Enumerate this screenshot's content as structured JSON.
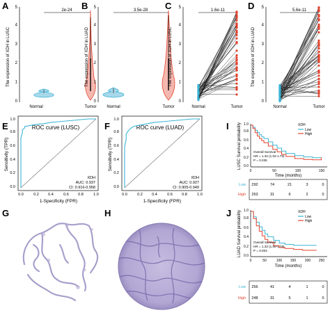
{
  "panels": {
    "A": {
      "letter": "A",
      "pvalue": "2e-24",
      "ylabel": "The expression of XDH in LUSC",
      "yticks": [
        "0",
        "1",
        "2",
        "3",
        "4",
        "5"
      ],
      "groups": [
        "Normal",
        "Tumor"
      ]
    },
    "B": {
      "letter": "B",
      "pvalue": "3.5e-28",
      "ylabel": "The expression of XDH in LUAD",
      "yticks": [
        "0",
        "1",
        "2",
        "3",
        "4",
        "5"
      ],
      "groups": [
        "Normal",
        "Tumor"
      ]
    },
    "C": {
      "letter": "C",
      "pvalue": "1.6e-11",
      "ylabel": "The expression of XDH in LUSC",
      "yticks": [
        "0",
        "1",
        "2",
        "3",
        "4",
        "5"
      ],
      "groups": [
        "Normal",
        "Tumor"
      ]
    },
    "D": {
      "letter": "D",
      "pvalue": "5.6e-11",
      "ylabel": "The expression of XDH in LUAD",
      "yticks": [
        "0",
        "1",
        "2",
        "3",
        "4",
        "5"
      ],
      "groups": [
        "Normal",
        "Tumor"
      ]
    },
    "E": {
      "letter": "E",
      "title": "ROC curve (LUSC)",
      "ylabel": "Sensitivity (TPR)",
      "xlabel": "1-Specificity (FPR)",
      "ticks": [
        "0.0",
        "0.2",
        "0.4",
        "0.6",
        "0.8",
        "1.0"
      ],
      "legend": [
        "XDH",
        "AUC: 0.937",
        "CI: 0.916-0.958"
      ]
    },
    "F": {
      "letter": "F",
      "title": "ROC curve (LUAD)",
      "ylabel": "Sensitivity (TPR)",
      "xlabel": "1-Specificity (FPR)",
      "ticks": [
        "0.0",
        "0.2",
        "0.4",
        "0.6",
        "0.8",
        "1.0"
      ],
      "legend": [
        "XDH",
        "AUC: 0.927",
        "CI: 0.905-0.949"
      ]
    },
    "G": {
      "letter": "G"
    },
    "H": {
      "letter": "H"
    },
    "I": {
      "letter": "I",
      "ylabel": "LUSC Survival probability",
      "xlabel": "Time (months)",
      "legend_title": "XDH",
      "legend": [
        "Low",
        "High"
      ],
      "stats": [
        "Overall Survival",
        "HR = 1.34 (1.02-1.76)",
        "P = 0.035"
      ],
      "yticks": [
        "0.0",
        "0.2",
        "0.4",
        "0.6",
        "0.8",
        "1.0"
      ],
      "xticks": [
        "0",
        "50",
        "100",
        "150"
      ],
      "risk_low": [
        "292",
        "74",
        "21",
        "3",
        "0"
      ],
      "risk_high": [
        "263",
        "31",
        "6",
        "2",
        "0"
      ],
      "risk_labels": [
        "Low",
        "High"
      ]
    },
    "J": {
      "letter": "J",
      "ylabel": "LUAD Survival probability",
      "xlabel": "Time (months)",
      "legend_title": "XDH",
      "legend": [
        "Low",
        "High"
      ],
      "stats": [
        "Overall Survival",
        "HR = 1.33 (1.00-1.78)",
        "P = 0.003"
      ],
      "yticks": [
        "0.0",
        "0.2",
        "0.4",
        "0.6",
        "0.8",
        "1.0"
      ],
      "xticks": [
        "0",
        "50",
        "100",
        "150",
        "200",
        "250"
      ],
      "risk_low": [
        "256",
        "41",
        "4",
        "1",
        "0"
      ],
      "risk_high": [
        "248",
        "31",
        "5",
        "1",
        "0"
      ],
      "risk_labels": [
        "Low",
        "High"
      ]
    }
  },
  "colors": {
    "normal": "#3bb4d6",
    "tumor": "#e3432e",
    "roc": "#3bb4d6",
    "violin_fill": "#f4b8b0",
    "km_low": "#3bb4d6",
    "km_high": "#e3432e",
    "tissue": "#9b8fc2"
  },
  "chart_data": [
    {
      "panel": "A",
      "type": "violin",
      "title": "",
      "ylabel": "The expression of XDH in LUSC",
      "categories": [
        "Normal",
        "Tumor"
      ],
      "ylim": [
        0,
        5
      ],
      "series": [
        {
          "name": "Normal",
          "median": 0.25,
          "range": [
            0.05,
            0.75
          ]
        },
        {
          "name": "Tumor",
          "median": 1.35,
          "q1": 0.6,
          "q3": 2.3,
          "range": [
            0.0,
            5.0
          ]
        }
      ],
      "annotation": "2e-24"
    },
    {
      "panel": "B",
      "type": "violin",
      "title": "",
      "ylabel": "The expression of XDH in LUAD",
      "categories": [
        "Normal",
        "Tumor"
      ],
      "ylim": [
        0,
        5
      ],
      "series": [
        {
          "name": "Normal",
          "median": 0.25,
          "range": [
            0.05,
            0.9
          ]
        },
        {
          "name": "Tumor",
          "median": 1.6,
          "q1": 0.7,
          "q3": 2.3,
          "range": [
            0.0,
            5.0
          ]
        }
      ],
      "annotation": "3.5e-28"
    },
    {
      "panel": "C",
      "type": "scatter",
      "title": "",
      "ylabel": "The expression of XDH in LUSC",
      "categories": [
        "Normal",
        "Tumor"
      ],
      "ylim": [
        0,
        5
      ],
      "paired_n": 49,
      "normal_range": [
        0.1,
        0.9
      ],
      "tumor_range": [
        0.1,
        4.8
      ],
      "annotation": "1.6e-11"
    },
    {
      "panel": "D",
      "type": "scatter",
      "title": "",
      "ylabel": "The expression of XDH in LUAD",
      "categories": [
        "Normal",
        "Tumor"
      ],
      "ylim": [
        0,
        5
      ],
      "paired_n": 57,
      "normal_range": [
        0.05,
        0.9
      ],
      "tumor_range": [
        0.2,
        5.0
      ],
      "annotation": "5.6e-11"
    },
    {
      "panel": "E",
      "type": "line",
      "title": "ROC curve (LUSC)",
      "xlabel": "1-Specificity (FPR)",
      "ylabel": "Sensitivity (TPR)",
      "xlim": [
        0,
        1
      ],
      "ylim": [
        0,
        1
      ],
      "x": [
        0,
        0,
        0.02,
        0.02,
        0.05,
        0.05,
        0.1,
        0.15,
        0.2,
        0.3,
        0.4,
        0.5,
        0.6,
        0.7,
        0.8,
        0.9,
        1.0
      ],
      "y": [
        0,
        0.72,
        0.8,
        0.84,
        0.87,
        0.89,
        0.9,
        0.91,
        0.92,
        0.93,
        0.95,
        0.96,
        0.97,
        0.98,
        0.99,
        1.0,
        1.0
      ],
      "series": [
        {
          "name": "XDH"
        }
      ],
      "annotation": [
        "AUC: 0.937",
        "CI: 0.916-0.958"
      ]
    },
    {
      "panel": "F",
      "type": "line",
      "title": "ROC curve (LUAD)",
      "xlabel": "1-Specificity (FPR)",
      "ylabel": "Sensitivity (TPR)",
      "xlim": [
        0,
        1
      ],
      "ylim": [
        0,
        1
      ],
      "x": [
        0,
        0,
        0.02,
        0.02,
        0.05,
        0.08,
        0.1,
        0.15,
        0.2,
        0.3,
        0.4,
        0.5,
        0.6,
        0.7,
        0.8,
        0.9,
        1.0
      ],
      "y": [
        0,
        0.6,
        0.7,
        0.78,
        0.83,
        0.86,
        0.88,
        0.9,
        0.91,
        0.93,
        0.95,
        0.96,
        0.97,
        0.98,
        0.99,
        1.0,
        1.0
      ],
      "series": [
        {
          "name": "XDH"
        }
      ],
      "annotation": [
        "AUC: 0.927",
        "CI: 0.905-0.949"
      ]
    },
    {
      "panel": "I",
      "type": "line",
      "title": "",
      "xlabel": "Time (months)",
      "ylabel": "LUSC Survival probability",
      "xlim": [
        0,
        170
      ],
      "ylim": [
        0,
        1
      ],
      "series": [
        {
          "name": "Low",
          "x": [
            0,
            5,
            10,
            15,
            20,
            25,
            30,
            40,
            50,
            60,
            70,
            80,
            100,
            120,
            140,
            160
          ],
          "y": [
            1.0,
            0.95,
            0.88,
            0.82,
            0.77,
            0.72,
            0.68,
            0.6,
            0.52,
            0.45,
            0.38,
            0.32,
            0.27,
            0.24,
            0.22,
            0.22
          ]
        },
        {
          "name": "High",
          "x": [
            0,
            5,
            10,
            15,
            20,
            25,
            30,
            40,
            50,
            60,
            70,
            80,
            100,
            120,
            140,
            160
          ],
          "y": [
            1.0,
            0.92,
            0.82,
            0.74,
            0.68,
            0.63,
            0.58,
            0.5,
            0.42,
            0.36,
            0.3,
            0.25,
            0.2,
            0.18,
            0.17,
            0.23
          ]
        }
      ],
      "annotation": [
        "Overall Survival",
        "HR = 1.34 (1.02-1.76)",
        "P = 0.035"
      ]
    },
    {
      "panel": "J",
      "type": "line",
      "title": "",
      "xlabel": "Time (months)",
      "ylabel": "LUAD Survival probability",
      "xlim": [
        0,
        250
      ],
      "ylim": [
        0,
        1
      ],
      "series": [
        {
          "name": "Low",
          "x": [
            0,
            10,
            20,
            30,
            40,
            50,
            60,
            80,
            100,
            120,
            150,
            180,
            200,
            230
          ],
          "y": [
            1.0,
            0.88,
            0.76,
            0.66,
            0.58,
            0.5,
            0.44,
            0.36,
            0.3,
            0.27,
            0.25,
            0.25,
            0.25,
            0.25
          ]
        },
        {
          "name": "High",
          "x": [
            0,
            10,
            20,
            30,
            40,
            50,
            60,
            80,
            100,
            120,
            150,
            180,
            200,
            230
          ],
          "y": [
            1.0,
            0.84,
            0.68,
            0.56,
            0.46,
            0.38,
            0.32,
            0.24,
            0.2,
            0.18,
            0.16,
            0.14,
            0.14,
            0.14
          ]
        }
      ],
      "annotation": [
        "Overall Survival",
        "HR = 1.33 (1.00-1.78)",
        "P = 0.003"
      ]
    }
  ]
}
